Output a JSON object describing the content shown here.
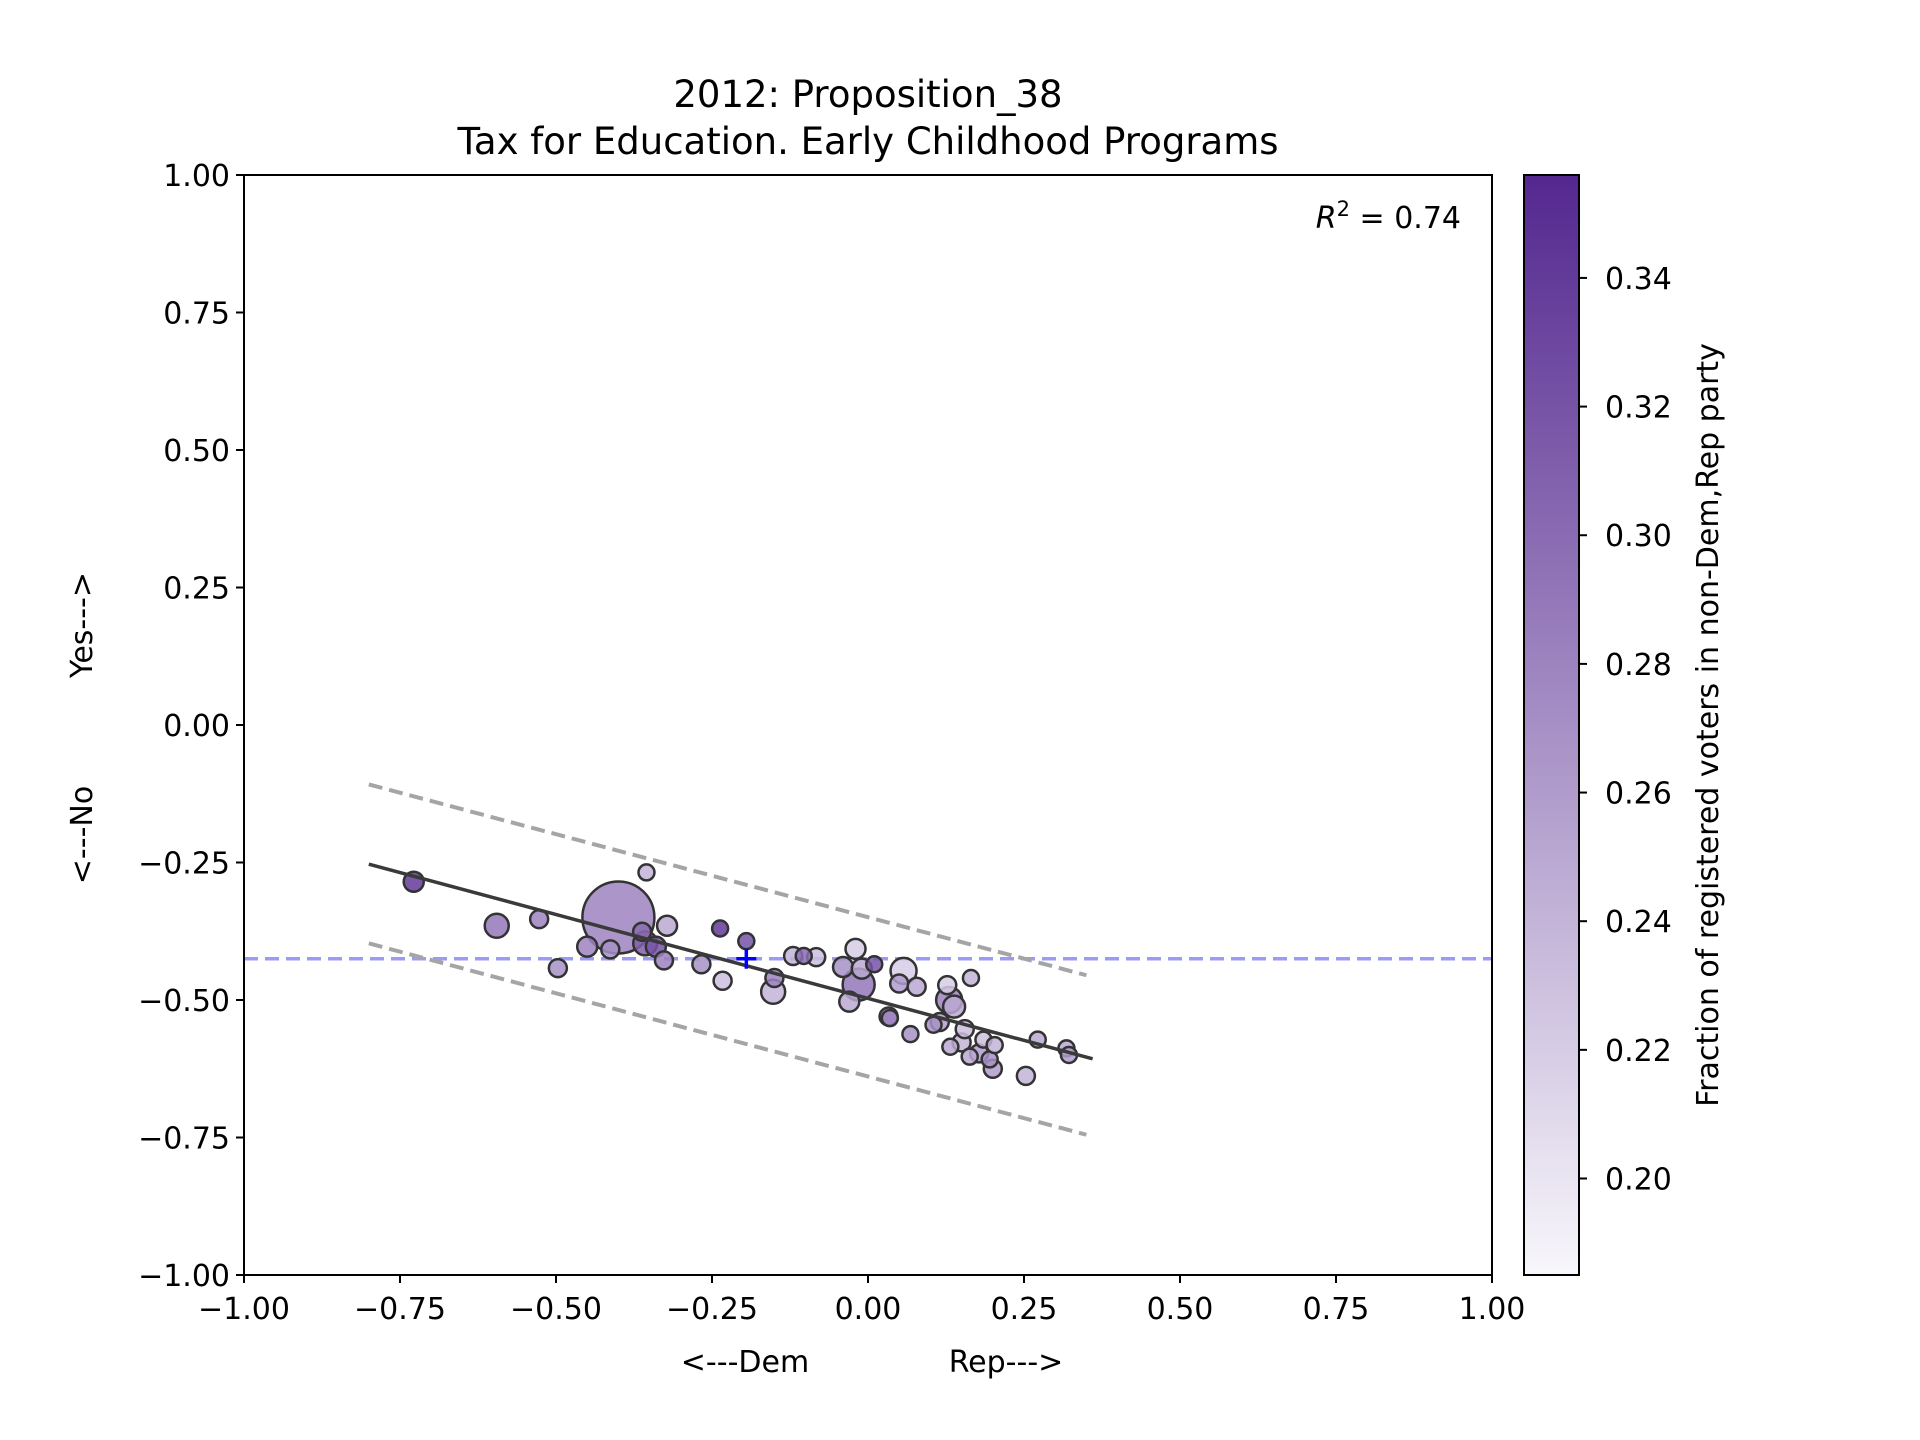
{
  "chart_data": {
    "type": "scatter",
    "title": "2012: Proposition_38",
    "subtitle": "Tax for Education. Early Childhood Programs",
    "xlabel_left": "<---Dem",
    "xlabel_right": "Rep--->",
    "ylabel_bottom": "<---No",
    "ylabel_top": "Yes--->",
    "xlim": [
      -1.0,
      1.0
    ],
    "ylim": [
      -1.0,
      1.0
    ],
    "xticks": [
      "−1.00",
      "−0.75",
      "−0.50",
      "−0.25",
      "0.00",
      "0.25",
      "0.50",
      "0.75",
      "1.00"
    ],
    "yticks": [
      "−1.00",
      "−0.75",
      "−0.50",
      "−0.25",
      "0.00",
      "0.25",
      "0.50",
      "0.75",
      "1.00"
    ],
    "annotation_prefix": "R",
    "annotation_sup": "2",
    "annotation_value": " = 0.74",
    "colorbar": {
      "label": "Fraction of registered voters in non-Dem,Rep party",
      "range": [
        0.185,
        0.356
      ],
      "ticks": [
        "0.20",
        "0.22",
        "0.24",
        "0.26",
        "0.28",
        "0.30",
        "0.32",
        "0.34"
      ],
      "tick_values": [
        0.2,
        0.22,
        0.24,
        0.26,
        0.28,
        0.3,
        0.32,
        0.34
      ],
      "color_low": "#f8f7fb",
      "color_high": "#54278f"
    },
    "reference_line": {
      "y": -0.425,
      "color": "#9b9bf4"
    },
    "mean_marker": {
      "x": -0.195,
      "y": -0.425,
      "color": "#0000ff"
    },
    "fit_line": {
      "x": [
        -0.8,
        0.36
      ],
      "y": [
        -0.253,
        -0.607
      ],
      "color": "#3a3a3a"
    },
    "upper_band": {
      "x": [
        -0.8,
        0.35
      ],
      "y": [
        -0.108,
        -0.455
      ],
      "color": "#a5a5a5"
    },
    "lower_band": {
      "x": [
        -0.8,
        0.35
      ],
      "y": [
        -0.397,
        -0.745
      ],
      "color": "#a5a5a5"
    },
    "points": [
      {
        "x": -0.728,
        "y": -0.285,
        "s": 10,
        "c": 0.34
      },
      {
        "x": -0.595,
        "y": -0.365,
        "s": 12,
        "c": 0.29
      },
      {
        "x": -0.527,
        "y": -0.353,
        "s": 9,
        "c": 0.28
      },
      {
        "x": -0.497,
        "y": -0.442,
        "s": 9,
        "c": 0.27
      },
      {
        "x": -0.45,
        "y": -0.403,
        "s": 10,
        "c": 0.28
      },
      {
        "x": -0.413,
        "y": -0.408,
        "s": 9,
        "c": 0.27
      },
      {
        "x": -0.4,
        "y": -0.35,
        "s": 36,
        "c": 0.28
      },
      {
        "x": -0.362,
        "y": -0.376,
        "s": 9,
        "c": 0.3
      },
      {
        "x": -0.357,
        "y": -0.397,
        "s": 12,
        "c": 0.31
      },
      {
        "x": -0.355,
        "y": -0.268,
        "s": 8,
        "c": 0.24
      },
      {
        "x": -0.34,
        "y": -0.403,
        "s": 10,
        "c": 0.32
      },
      {
        "x": -0.322,
        "y": -0.365,
        "s": 10,
        "c": 0.25
      },
      {
        "x": -0.327,
        "y": -0.428,
        "s": 9,
        "c": 0.28
      },
      {
        "x": -0.267,
        "y": -0.435,
        "s": 9,
        "c": 0.27
      },
      {
        "x": -0.237,
        "y": -0.37,
        "s": 8,
        "c": 0.34
      },
      {
        "x": -0.233,
        "y": -0.465,
        "s": 9,
        "c": 0.23
      },
      {
        "x": -0.195,
        "y": -0.393,
        "s": 8,
        "c": 0.32
      },
      {
        "x": -0.152,
        "y": -0.485,
        "s": 12,
        "c": 0.24
      },
      {
        "x": -0.15,
        "y": -0.46,
        "s": 9,
        "c": 0.28
      },
      {
        "x": -0.12,
        "y": -0.42,
        "s": 9,
        "c": 0.24
      },
      {
        "x": -0.103,
        "y": -0.42,
        "s": 8,
        "c": 0.3
      },
      {
        "x": -0.083,
        "y": -0.422,
        "s": 9,
        "c": 0.23
      },
      {
        "x": -0.04,
        "y": -0.44,
        "s": 10,
        "c": 0.27
      },
      {
        "x": -0.03,
        "y": -0.503,
        "s": 10,
        "c": 0.25
      },
      {
        "x": -0.02,
        "y": -0.407,
        "s": 10,
        "c": 0.22
      },
      {
        "x": -0.015,
        "y": -0.472,
        "s": 16,
        "c": 0.29
      },
      {
        "x": -0.01,
        "y": -0.443,
        "s": 10,
        "c": 0.25
      },
      {
        "x": 0.01,
        "y": -0.435,
        "s": 8,
        "c": 0.32
      },
      {
        "x": 0.033,
        "y": -0.53,
        "s": 9,
        "c": 0.27
      },
      {
        "x": 0.035,
        "y": -0.533,
        "s": 8,
        "c": 0.28
      },
      {
        "x": 0.05,
        "y": -0.47,
        "s": 9,
        "c": 0.26
      },
      {
        "x": 0.057,
        "y": -0.447,
        "s": 13,
        "c": 0.22
      },
      {
        "x": 0.068,
        "y": -0.562,
        "s": 8,
        "c": 0.27
      },
      {
        "x": 0.078,
        "y": -0.476,
        "s": 9,
        "c": 0.25
      },
      {
        "x": 0.105,
        "y": -0.545,
        "s": 8,
        "c": 0.27
      },
      {
        "x": 0.115,
        "y": -0.54,
        "s": 9,
        "c": 0.26
      },
      {
        "x": 0.127,
        "y": -0.473,
        "s": 9,
        "c": 0.22
      },
      {
        "x": 0.13,
        "y": -0.5,
        "s": 13,
        "c": 0.28
      },
      {
        "x": 0.138,
        "y": -0.512,
        "s": 11,
        "c": 0.25
      },
      {
        "x": 0.132,
        "y": -0.585,
        "s": 8,
        "c": 0.25
      },
      {
        "x": 0.15,
        "y": -0.577,
        "s": 9,
        "c": 0.24
      },
      {
        "x": 0.155,
        "y": -0.553,
        "s": 9,
        "c": 0.23
      },
      {
        "x": 0.165,
        "y": -0.46,
        "s": 8,
        "c": 0.24
      },
      {
        "x": 0.163,
        "y": -0.603,
        "s": 8,
        "c": 0.25
      },
      {
        "x": 0.178,
        "y": -0.597,
        "s": 9,
        "c": 0.26
      },
      {
        "x": 0.185,
        "y": -0.572,
        "s": 8,
        "c": 0.23
      },
      {
        "x": 0.195,
        "y": -0.608,
        "s": 8,
        "c": 0.27
      },
      {
        "x": 0.2,
        "y": -0.625,
        "s": 9,
        "c": 0.26
      },
      {
        "x": 0.203,
        "y": -0.582,
        "s": 8,
        "c": 0.24
      },
      {
        "x": 0.253,
        "y": -0.638,
        "s": 9,
        "c": 0.24
      },
      {
        "x": 0.272,
        "y": -0.572,
        "s": 8,
        "c": 0.25
      },
      {
        "x": 0.318,
        "y": -0.588,
        "s": 8,
        "c": 0.25
      },
      {
        "x": 0.322,
        "y": -0.6,
        "s": 8,
        "c": 0.26
      }
    ]
  }
}
